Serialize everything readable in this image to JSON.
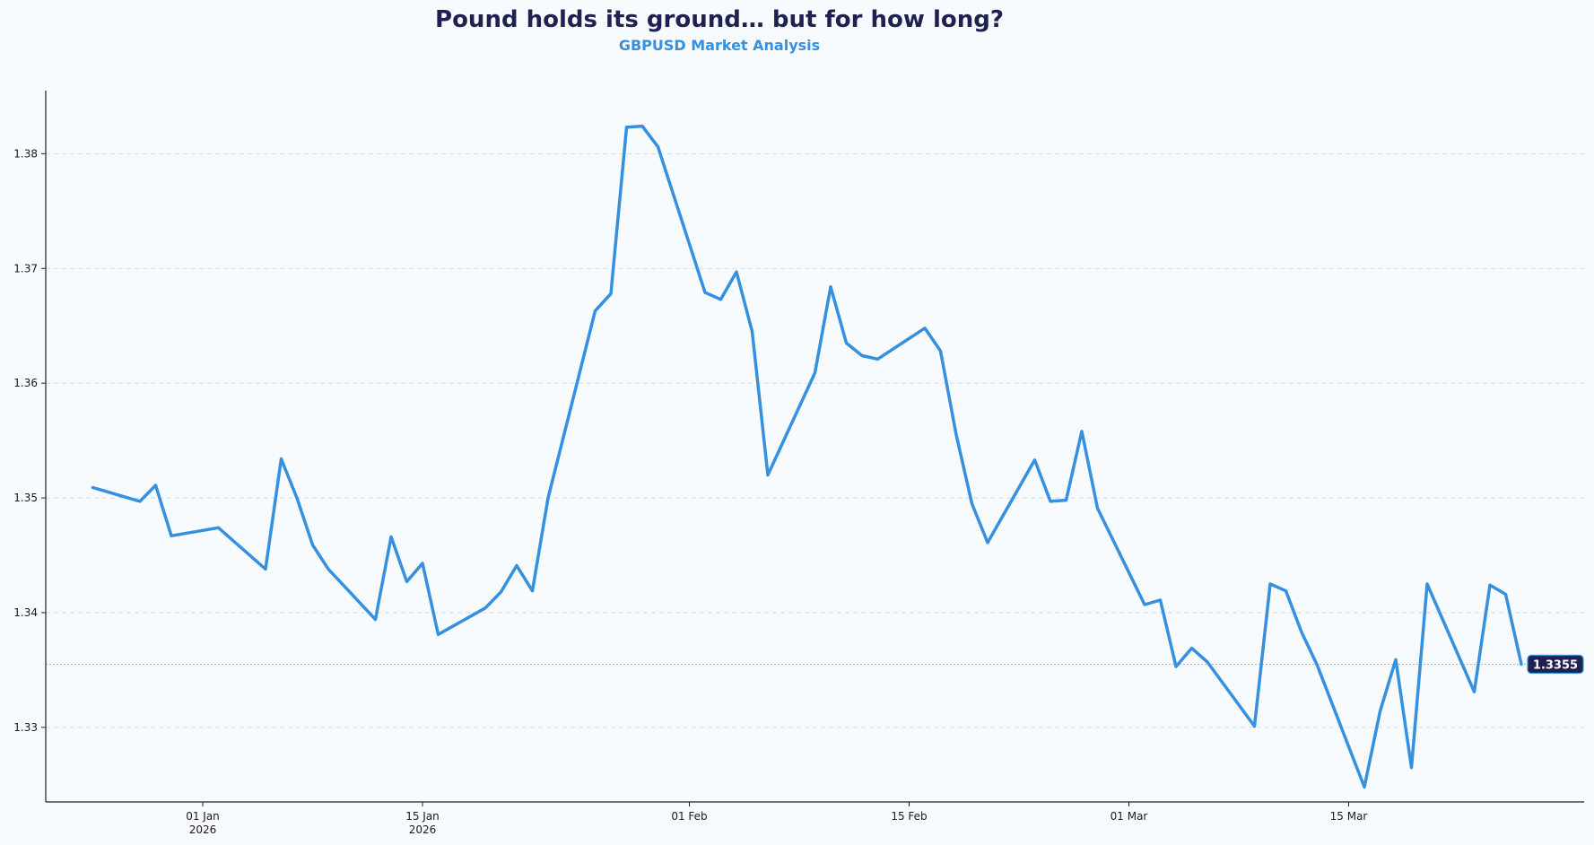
{
  "chart_data": {
    "type": "line",
    "title": "Pound holds its ground… but for how long?",
    "subtitle": "GBPUSD Market Analysis",
    "xlabel": "",
    "ylabel": "",
    "grid": "horizontal dashed",
    "ylim": [
      1.3235,
      1.3855
    ],
    "xlim": [
      "2025-12-22",
      "2026-03-30"
    ],
    "yticks": [
      "1.33",
      "1.34",
      "1.35",
      "1.36",
      "1.37",
      "1.38"
    ],
    "xticks": [
      {
        "date": "2026-01-01",
        "line1": "01 Jan",
        "line2": "2026"
      },
      {
        "date": "2026-01-15",
        "line1": "15 Jan",
        "line2": "2026"
      },
      {
        "date": "2026-02-01",
        "line1": "01 Feb",
        "line2": ""
      },
      {
        "date": "2026-02-15",
        "line1": "15 Feb",
        "line2": ""
      },
      {
        "date": "2026-03-01",
        "line1": "01 Mar",
        "line2": ""
      },
      {
        "date": "2026-03-15",
        "line1": "15 Mar",
        "line2": ""
      }
    ],
    "last_value_label": "1.3355",
    "line_color": "#3690e0",
    "label_bg_color": "#1f2150",
    "series": [
      {
        "name": "",
        "x": [
          "2025-12-25",
          "2025-12-28",
          "2025-12-29",
          "2025-12-30",
          "2026-01-02",
          "2026-01-05",
          "2026-01-06",
          "2026-01-07",
          "2026-01-08",
          "2026-01-09",
          "2026-01-12",
          "2026-01-13",
          "2026-01-14",
          "2026-01-15",
          "2026-01-16",
          "2026-01-19",
          "2026-01-20",
          "2026-01-21",
          "2026-01-22",
          "2026-01-23",
          "2026-01-26",
          "2026-01-27",
          "2026-01-28",
          "2026-01-29",
          "2026-01-30",
          "2026-02-02",
          "2026-02-03",
          "2026-02-04",
          "2026-02-05",
          "2026-02-06",
          "2026-02-09",
          "2026-02-10",
          "2026-02-11",
          "2026-02-12",
          "2026-02-13",
          "2026-02-16",
          "2026-02-17",
          "2026-02-18",
          "2026-02-19",
          "2026-02-20",
          "2026-02-23",
          "2026-02-24",
          "2026-02-25",
          "2026-02-26",
          "2026-02-27",
          "2026-03-02",
          "2026-03-03",
          "2026-03-04",
          "2026-03-05",
          "2026-03-06",
          "2026-03-09",
          "2026-03-10",
          "2026-03-11",
          "2026-03-12",
          "2026-03-13",
          "2026-03-16",
          "2026-03-17",
          "2026-03-18",
          "2026-03-19",
          "2026-03-20",
          "2026-03-23",
          "2026-03-24",
          "2026-03-25",
          "2026-03-26"
        ],
        "values": [
          1.3509,
          1.3497,
          1.3511,
          1.3467,
          1.3474,
          1.3438,
          1.3534,
          1.35,
          1.3459,
          1.3438,
          1.3394,
          1.3466,
          1.3427,
          1.3443,
          1.3381,
          1.3404,
          1.3418,
          1.3441,
          1.3419,
          1.35,
          1.3663,
          1.3678,
          1.3823,
          1.3824,
          1.3806,
          1.3679,
          1.3673,
          1.3697,
          1.3645,
          1.352,
          1.3609,
          1.3684,
          1.3635,
          1.3624,
          1.3621,
          1.3648,
          1.3628,
          1.3555,
          1.3495,
          1.3461,
          1.3533,
          1.3497,
          1.3498,
          1.3558,
          1.3491,
          1.3407,
          1.3411,
          1.3353,
          1.3369,
          1.3357,
          1.3301,
          1.3425,
          1.3419,
          1.3383,
          1.3354,
          1.3248,
          1.3314,
          1.3359,
          1.3265,
          1.3425,
          1.3331,
          1.3424,
          1.3416,
          1.3355
        ]
      }
    ]
  }
}
